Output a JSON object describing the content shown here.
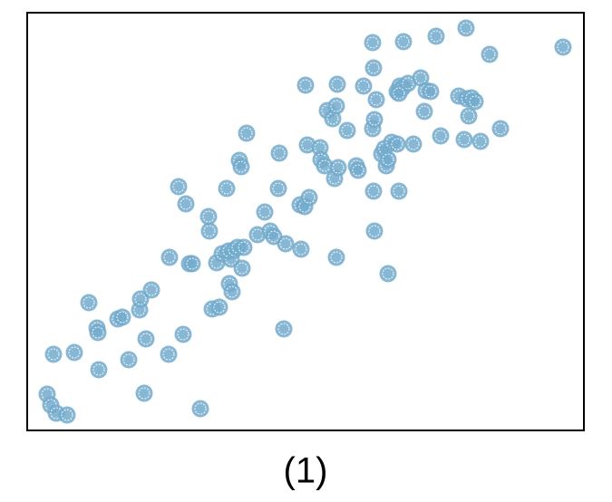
{
  "chart_data": {
    "type": "scatter",
    "title": "(1)",
    "color": "#72aacb",
    "x": [
      22,
      26,
      32,
      44,
      29,
      52,
      68,
      77,
      78,
      79,
      100,
      105,
      112,
      124,
      125,
      131,
      129,
      137,
      156,
      157,
      167,
      172,
      175,
      179,
      182,
      191,
      200,
      201,
      204,
      209,
      212,
      215,
      220,
      223,
      226,
      225,
      222,
      228,
      232,
      237,
      239,
      234,
      236,
      242,
      254,
      262,
      268,
      272,
      278,
      277,
      283,
      285,
      302,
      301,
      306,
      311,
      309,
      307,
      323,
      324,
      328,
      331,
      337,
      341,
      342,
      339,
      343,
      341,
      353,
      363,
      365,
      371,
      381,
      382,
      381,
      382,
      383,
      383,
      385,
      391,
      394,
      396,
      398,
      398,
      402,
      408,
      410,
      408,
      411,
      414,
      415,
      420,
      426,
      434,
      438,
      440,
      445,
      451,
      456,
      476,
      482,
      484,
      485,
      487,
      490,
      494,
      500,
      510,
      522,
      591,
      410
    ],
    "values": [
      40,
      28,
      19,
      17,
      84,
      86,
      141,
      113,
      108,
      67,
      123,
      125,
      78,
      133,
      145,
      101,
      41,
      155,
      84,
      191,
      269,
      106,
      250,
      184,
      184,
      24,
      236,
      220,
      134,
      185,
      136,
      195,
      267,
      162,
      153,
      189,
      198,
      199,
      202,
      179,
      202,
      298,
      291,
      328,
      216,
      241,
      220,
      214,
      306,
      267,
      112,
      206,
      200,
      249,
      247,
      257,
      315,
      381,
      312,
      299,
      292,
      353,
      344,
      358,
      382,
      278,
      290,
      191,
      331,
      292,
      287,
      380,
      333,
      264,
      428,
      400,
      343,
      220,
      365,
      305,
      311,
      292,
      173,
      299,
      318,
      316,
      264,
      374,
      380,
      378,
      429,
      383,
      316,
      389,
      352,
      375,
      374,
      435,
      325,
      369,
      321,
      444,
      366,
      347,
      367,
      363,
      319,
      415,
      333,
      423,
      372
    ],
    "xlim": [
      0,
      614
    ],
    "ylim": [
      0,
      461
    ]
  }
}
